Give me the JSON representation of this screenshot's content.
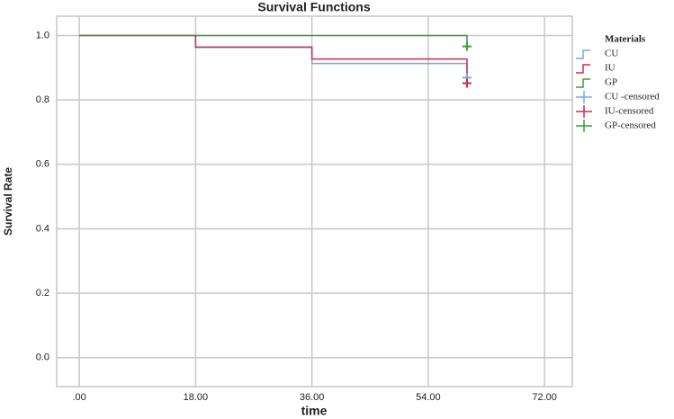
{
  "chart_data": {
    "type": "step",
    "title": "Survival Functions",
    "x_label": "time",
    "y_label": "Survival Rate",
    "legend_title": "Materials",
    "legend_position": "right",
    "grid": true,
    "xlim": [
      -3.5,
      76.3
    ],
    "ylim": [
      -0.09,
      1.06
    ],
    "xticks": [
      {
        "value": 0,
        "label": ".00"
      },
      {
        "value": 18,
        "label": "18.00"
      },
      {
        "value": 36,
        "label": "36.00"
      },
      {
        "value": 54,
        "label": "54.00"
      },
      {
        "value": 72,
        "label": "72.00"
      }
    ],
    "yticks": [
      {
        "value": 0,
        "label": "0.0"
      },
      {
        "value": 0.2,
        "label": "0.2"
      },
      {
        "value": 0.4,
        "label": "0.4"
      },
      {
        "value": 0.6,
        "label": "0.6"
      },
      {
        "value": 0.8,
        "label": "0.8"
      },
      {
        "value": 1,
        "label": "1.0"
      }
    ],
    "series": [
      {
        "name": "CU",
        "color": "#7aa7dc",
        "marker": "step",
        "x": [
          0,
          18,
          36,
          60
        ],
        "values": [
          1,
          0.963,
          0.913,
          0.869
        ]
      },
      {
        "name": "IU",
        "color": "#d42a50",
        "marker": "step",
        "x": [
          0,
          18,
          36,
          60
        ],
        "values": [
          1,
          0.964,
          0.927,
          0.852
        ]
      },
      {
        "name": "GP",
        "color": "#3f9c3f",
        "marker": "step",
        "x": [
          0,
          18,
          36,
          60
        ],
        "values": [
          1,
          1,
          1,
          0.966
        ]
      },
      {
        "name": "CU -censored",
        "color": "#7aa7dc",
        "marker": "plus",
        "x": [
          60
        ],
        "values": [
          0.869
        ]
      },
      {
        "name": "IU-censored",
        "color": "#d42a50",
        "marker": "plus",
        "x": [
          60
        ],
        "values": [
          0.852
        ]
      },
      {
        "name": "GP-censored",
        "color": "#3f9c3f",
        "marker": "plus",
        "x": [
          60
        ],
        "values": [
          0.966
        ]
      }
    ]
  }
}
